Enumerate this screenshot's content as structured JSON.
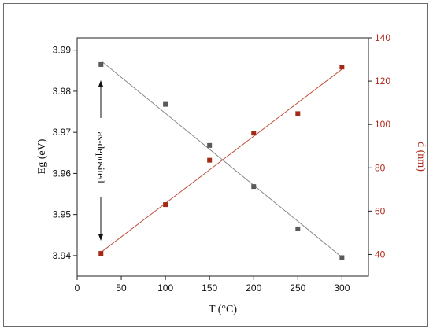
{
  "chart_data": {
    "type": "scatter",
    "xlabel": "T (°C)",
    "ylabel": "Eg (eV)",
    "y2label": "d (nm)",
    "xlim": [
      0,
      330
    ],
    "ylim": [
      3.935,
      3.993
    ],
    "y2lim": [
      30,
      140
    ],
    "x_ticks": [
      "0",
      "50",
      "100",
      "150",
      "200",
      "250",
      "300"
    ],
    "y_ticks": [
      "3.94",
      "3.95",
      "3.96",
      "3.97",
      "3.98",
      "3.99"
    ],
    "y2_ticks": [
      "40",
      "60",
      "80",
      "100",
      "120",
      "140"
    ],
    "grid": false,
    "colors": {
      "eg": "#5a5a5a",
      "d": "#a32a17",
      "eg_line": "#8a8a8a",
      "d_line": "#c0503a"
    },
    "series": [
      {
        "axis": "left",
        "x": [
          27,
          100,
          150,
          200,
          250,
          300
        ],
        "values": [
          3.9865,
          3.9768,
          3.9668,
          3.9568,
          3.9465,
          3.9395
        ],
        "fit": {
          "x": [
            27,
            300
          ],
          "y": [
            3.9874,
            3.9396
          ]
        }
      },
      {
        "axis": "right",
        "x": [
          27,
          100,
          150,
          200,
          250,
          300
        ],
        "values": [
          40.5,
          63,
          83.5,
          96,
          105,
          126.5
        ],
        "fit": {
          "x": [
            27,
            300
          ],
          "y": [
            41,
            125.5
          ]
        }
      }
    ],
    "annotations": [
      {
        "text": "as-deposited"
      }
    ]
  }
}
